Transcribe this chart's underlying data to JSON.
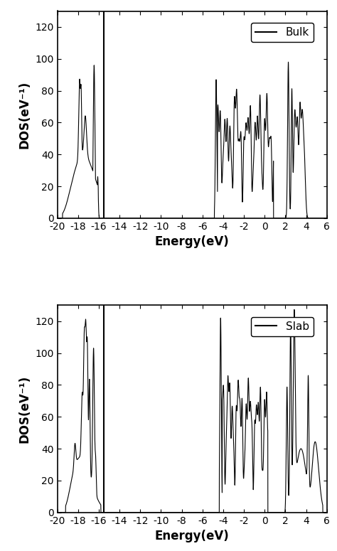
{
  "xlim": [
    -20,
    6
  ],
  "ylim": [
    0,
    130
  ],
  "xticks": [
    -20,
    -18,
    -16,
    -14,
    -12,
    -10,
    -8,
    -6,
    -4,
    -2,
    0,
    2,
    4,
    6
  ],
  "yticks": [
    0,
    20,
    40,
    60,
    80,
    100,
    120
  ],
  "xlabel": "Energy(eV)",
  "ylabel": "DOS(eV⁻¹)",
  "bulk_label": "Bulk",
  "slab_label": "Slab",
  "vline_x": -15.5,
  "line_color": "black",
  "line_width": 0.8,
  "legend_fontsize": 11,
  "tick_fontsize": 10,
  "label_fontsize": 12
}
